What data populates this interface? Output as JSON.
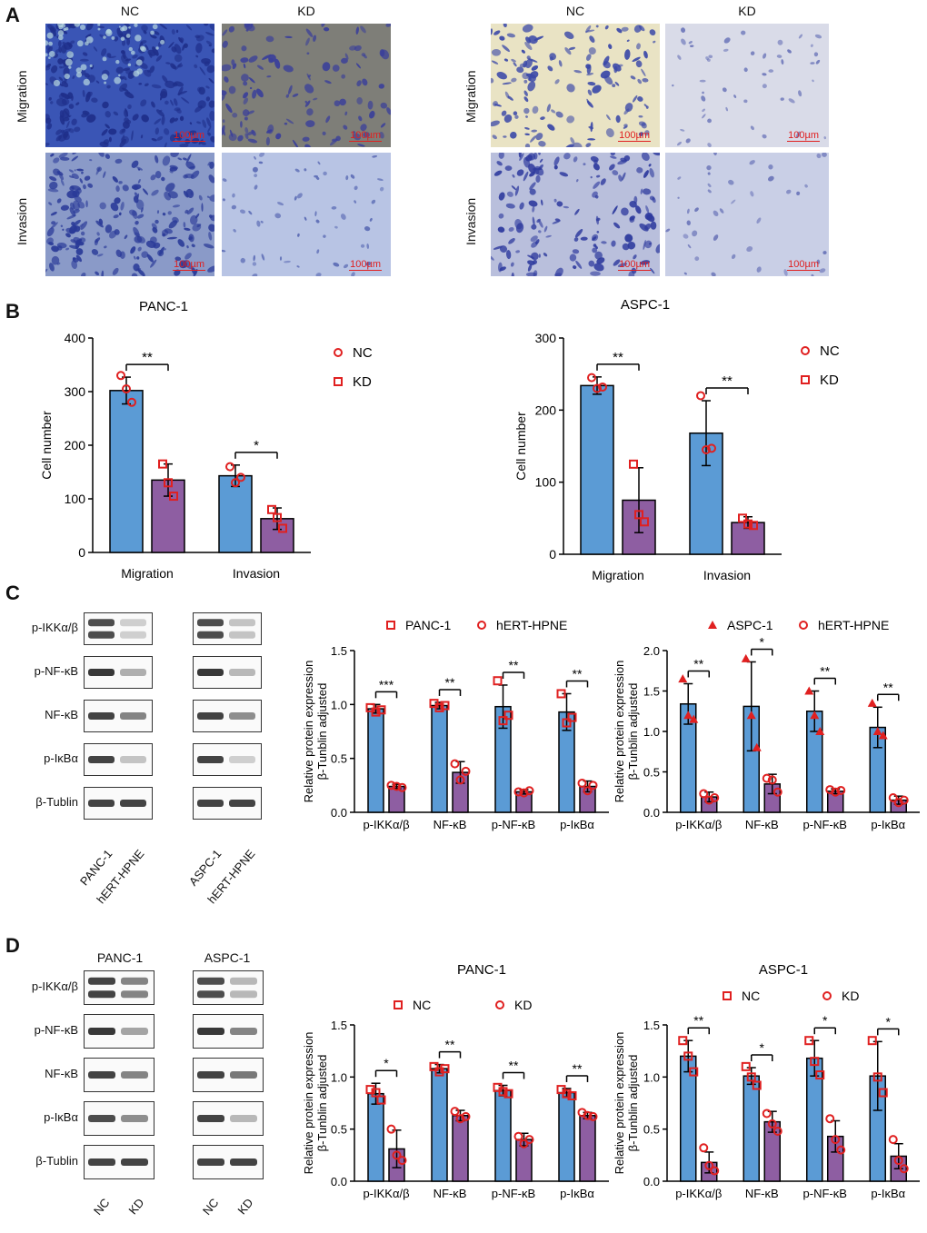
{
  "panels": {
    "A": {
      "letter": "A",
      "left": {
        "cols": [
          "NC",
          "KD"
        ],
        "rows": [
          "Migration",
          "Invasion"
        ]
      },
      "right": {
        "cols": [
          "NC",
          "KD"
        ],
        "rows": [
          "Migration",
          "Invasion"
        ]
      },
      "scale_label": "100µm"
    },
    "B": {
      "letter": "B"
    },
    "C": {
      "letter": "C",
      "blot_rows": [
        "p-IKKα/β",
        "p-NF-κB",
        "NF-κB",
        "p-IκBα",
        "β-Tublin"
      ],
      "lanes_left": [
        "PANC-1",
        "hERT-HPNE"
      ],
      "lanes_right": [
        "ASPC-1",
        "hERT-HPNE"
      ]
    },
    "D": {
      "letter": "D",
      "blot_rows": [
        "p-IKKα/β",
        "p-NF-κB",
        "NF-κB",
        "p-IκBα",
        "β-Tublin"
      ],
      "group_left": "PANC-1",
      "group_right": "ASPC-1",
      "lanes": [
        "NC",
        "KD"
      ]
    }
  },
  "colors": {
    "blue": "#5b9bd5",
    "purple": "#8e5ea2",
    "marker": "#e02020",
    "scale": "#e02020"
  },
  "chart_data": [
    {
      "id": "B-left",
      "type": "bar",
      "title": "PANC-1",
      "categories": [
        "Migration",
        "Invasion"
      ],
      "ylabel": "Cell number",
      "ylim": [
        0,
        400
      ],
      "yticks": [
        0,
        100,
        200,
        300,
        400
      ],
      "series": [
        {
          "name": "NC",
          "values": [
            302,
            143
          ],
          "err": [
            25,
            20
          ],
          "points": [
            [
              330,
              305,
              280
            ],
            [
              160,
              130,
              140
            ]
          ]
        },
        {
          "name": "KD",
          "values": [
            135,
            63
          ],
          "err": [
            30,
            20
          ],
          "points": [
            [
              165,
              130,
              105
            ],
            [
              80,
              65,
              45
            ]
          ]
        }
      ],
      "sig": [
        "**",
        "*"
      ],
      "legend": [
        "NC",
        "KD"
      ]
    },
    {
      "id": "B-right",
      "type": "bar",
      "title": "ASPC-1",
      "categories": [
        "Migration",
        "Invasion"
      ],
      "ylabel": "Cell number",
      "ylim": [
        0,
        300
      ],
      "yticks": [
        0,
        100,
        200,
        300
      ],
      "series": [
        {
          "name": "NC",
          "values": [
            234,
            168
          ],
          "err": [
            12,
            45
          ],
          "points": [
            [
              245,
              230,
              232
            ],
            [
              220,
              145,
              147
            ]
          ]
        },
        {
          "name": "KD",
          "values": [
            75,
            44
          ],
          "err": [
            45,
            8
          ],
          "points": [
            [
              125,
              55,
              45
            ],
            [
              50,
              42,
              40
            ]
          ]
        }
      ],
      "sig": [
        "**",
        "**"
      ],
      "legend": [
        "NC",
        "KD"
      ]
    },
    {
      "id": "C-left",
      "type": "bar",
      "categories": [
        "p-IKKα/β",
        "NF-κB",
        "p-NF-κB",
        "p-IκBα"
      ],
      "ylabel": "Relative protein expression\nβ-Tunblin adjusted",
      "ylim": [
        0,
        1.5
      ],
      "yticks": [
        0.0,
        0.5,
        1.0,
        1.5
      ],
      "series": [
        {
          "name": "PANC-1",
          "values": [
            0.96,
            0.99,
            0.98,
            0.93
          ],
          "err": [
            0.04,
            0.03,
            0.2,
            0.17
          ],
          "points": [
            [
              0.97,
              0.93,
              0.95
            ],
            [
              1.01,
              0.97,
              0.99
            ],
            [
              1.22,
              0.85,
              0.9
            ],
            [
              1.1,
              0.83,
              0.88
            ]
          ]
        },
        {
          "name": "hERT-HPNE",
          "values": [
            0.24,
            0.37,
            0.19,
            0.24
          ],
          "err": [
            0.02,
            0.1,
            0.02,
            0.05
          ],
          "points": [
            [
              0.25,
              0.24,
              0.23
            ],
            [
              0.45,
              0.3,
              0.38
            ],
            [
              0.19,
              0.18,
              0.2
            ],
            [
              0.27,
              0.2,
              0.25
            ]
          ]
        }
      ],
      "sig": [
        "***",
        "**",
        "**",
        "**"
      ],
      "legend": [
        "PANC-1",
        "hERT-HPNE"
      ]
    },
    {
      "id": "C-right",
      "type": "bar",
      "categories": [
        "p-IKKα/β",
        "NF-κB",
        "p-NF-κB",
        "p-IκBα"
      ],
      "ylabel": "Relative protein expression\nβ-Tunblin adjusted",
      "ylim": [
        0,
        2.0
      ],
      "yticks": [
        0.0,
        0.5,
        1.0,
        1.5,
        2.0
      ],
      "series": [
        {
          "name": "ASPC-1",
          "values": [
            1.34,
            1.31,
            1.25,
            1.05
          ],
          "err": [
            0.25,
            0.55,
            0.25,
            0.25
          ],
          "points": [
            [
              1.65,
              1.2,
              1.15
            ],
            [
              1.9,
              1.2,
              0.8
            ],
            [
              1.5,
              1.2,
              1.0
            ],
            [
              1.35,
              1.0,
              0.95
            ]
          ]
        },
        {
          "name": "hERT-HPNE",
          "values": [
            0.19,
            0.35,
            0.26,
            0.15
          ],
          "err": [
            0.06,
            0.12,
            0.03,
            0.05
          ],
          "points": [
            [
              0.23,
              0.15,
              0.18
            ],
            [
              0.42,
              0.4,
              0.25
            ],
            [
              0.28,
              0.25,
              0.27
            ],
            [
              0.18,
              0.12,
              0.15
            ]
          ]
        }
      ],
      "sig": [
        "**",
        "*",
        "**",
        "**"
      ],
      "legend": [
        "ASPC-1",
        "hERT-HPNE"
      ]
    },
    {
      "id": "D-left",
      "type": "bar",
      "title": "PANC-1",
      "categories": [
        "p-IKKα/β",
        "NF-κB",
        "p-NF-κB",
        "p-IκBα"
      ],
      "ylabel": "Relative protein expression\nβ-Tunblin adjusted",
      "ylim": [
        0,
        1.5
      ],
      "yticks": [
        0.0,
        0.5,
        1.0,
        1.5
      ],
      "series": [
        {
          "name": "NC",
          "values": [
            0.84,
            1.08,
            0.87,
            0.85
          ],
          "err": [
            0.1,
            0.04,
            0.05,
            0.04
          ],
          "points": [
            [
              0.88,
              0.85,
              0.78
            ],
            [
              1.1,
              1.05,
              1.08
            ],
            [
              0.9,
              0.86,
              0.84
            ],
            [
              0.88,
              0.84,
              0.82
            ]
          ]
        },
        {
          "name": "KD",
          "values": [
            0.31,
            0.63,
            0.4,
            0.63
          ],
          "err": [
            0.18,
            0.05,
            0.06,
            0.03
          ],
          "points": [
            [
              0.5,
              0.25,
              0.2
            ],
            [
              0.67,
              0.6,
              0.62
            ],
            [
              0.43,
              0.36,
              0.4
            ],
            [
              0.66,
              0.63,
              0.62
            ]
          ]
        }
      ],
      "sig": [
        "*",
        "**",
        "**",
        "**"
      ],
      "legend": [
        "NC",
        "KD"
      ]
    },
    {
      "id": "D-right",
      "type": "bar",
      "title": "ASPC-1",
      "categories": [
        "p-IKKα/β",
        "NF-κB",
        "p-NF-κB",
        "p-IκBα"
      ],
      "ylabel": "Relative protein expression\nβ-Tunblin adjusted",
      "ylim": [
        0,
        1.5
      ],
      "yticks": [
        0.0,
        0.5,
        1.0,
        1.5
      ],
      "series": [
        {
          "name": "NC",
          "values": [
            1.2,
            1.01,
            1.18,
            1.01
          ],
          "err": [
            0.15,
            0.08,
            0.17,
            0.33
          ],
          "points": [
            [
              1.35,
              1.2,
              1.05
            ],
            [
              1.1,
              1.0,
              0.92
            ],
            [
              1.35,
              1.15,
              1.02
            ],
            [
              1.35,
              1.0,
              0.85
            ]
          ]
        },
        {
          "name": "KD",
          "values": [
            0.18,
            0.57,
            0.43,
            0.24
          ],
          "err": [
            0.1,
            0.1,
            0.15,
            0.12
          ],
          "points": [
            [
              0.32,
              0.15,
              0.1
            ],
            [
              0.65,
              0.55,
              0.48
            ],
            [
              0.6,
              0.4,
              0.3
            ],
            [
              0.4,
              0.2,
              0.12
            ]
          ]
        }
      ],
      "sig": [
        "**",
        "*",
        "*",
        "*"
      ],
      "legend": [
        "NC",
        "KD"
      ]
    }
  ]
}
